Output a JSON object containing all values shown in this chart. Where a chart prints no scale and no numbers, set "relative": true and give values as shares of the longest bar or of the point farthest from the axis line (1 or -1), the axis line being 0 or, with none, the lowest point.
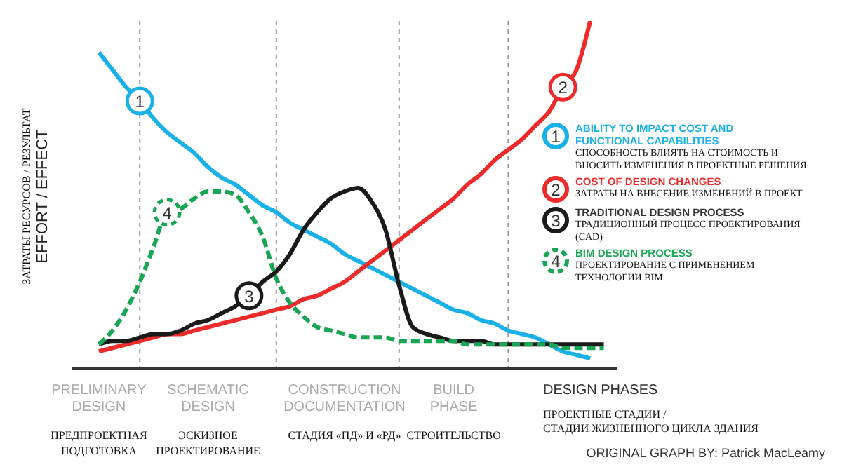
{
  "chart_data": {
    "type": "line",
    "relative": true,
    "ylabel": "ЗАТРАТЫ РЕСУРСОВ / РЕЗУЛЬТАТ\n\nEFFORT / EFFECT",
    "xlabel": "DESIGN PHASES\n\nПРОЕКТНЫЕ СТАДИИ /\nСТАДИИ ЖИЗНЕННОГО ЦИКЛА ЗДАНИЯ",
    "categories": [
      null,
      null,
      "PRELIMINARY\nDESIGN\n\nПРЕДПРОЕКТНАЯ\nПОДГОТОВКА",
      null,
      null,
      null,
      null,
      null,
      null,
      null,
      "SCHEMATIC\nDESIGN\n\nЭСКИЗНОЕ\nПРОЕКТИРОВАНИЕ",
      null,
      null,
      null,
      null,
      null,
      null,
      null,
      null,
      null,
      "CONSTRUCTION\nDOCUMENTATION\n\nСТАДИЯ «ПД» И «РД»",
      null,
      null,
      null,
      null,
      null,
      null,
      null,
      "BUILD\nPHASE\n\nСТРОИТЕЛЬСТВО",
      null,
      null,
      null,
      null,
      null,
      null,
      null,
      null,
      null,
      null,
      null,
      null
    ],
    "grid": "x",
    "legend": "right",
    "series": [
      {
        "name": "ABILITY TO IMPACT COST AND\nFUNCTIONAL CAPABILITIES\n\nСПОСОБНОСТЬ ВЛИЯТЬ НА СТОИМОСТЬ И\nВНОСИТЬ ИЗМЕНЕНИЯ В ПРОЕКТНЫЕ РЕШЕНИЯ",
        "color": "#1ab0e8",
        "line_style": "solid",
        "values": [
          null,
          null,
          0.91,
          0.86,
          0.81,
          0.77,
          0.72,
          0.68,
          0.65,
          0.62,
          0.58,
          0.55,
          0.53,
          0.5,
          0.47,
          0.45,
          0.42,
          0.4,
          0.38,
          0.36,
          0.33,
          0.31,
          0.29,
          0.27,
          0.25,
          0.23,
          0.21,
          0.19,
          0.17,
          0.16,
          0.14,
          0.13,
          0.11,
          0.1,
          0.09,
          0.07,
          0.05,
          0.04,
          0.03,
          null,
          null
        ]
      },
      {
        "name": "COST OF DESIGN CHANGES\n\nЗАТРАТЫ НА ВНЕСЕНИЕ ИЗМЕНЕНИЙ В ПРОЕКТ",
        "color": "#ee2a2a",
        "line_style": "solid",
        "values": [
          null,
          null,
          0.05,
          0.06,
          0.07,
          0.08,
          0.09,
          0.1,
          0.1,
          0.11,
          0.12,
          0.13,
          0.14,
          0.15,
          0.16,
          0.17,
          0.18,
          0.2,
          0.21,
          0.23,
          0.25,
          0.28,
          0.31,
          0.34,
          0.37,
          0.4,
          0.43,
          0.46,
          0.49,
          0.53,
          0.56,
          0.6,
          0.63,
          0.66,
          0.7,
          0.74,
          0.81,
          0.86,
          1,
          null,
          null
        ]
      },
      {
        "name": "TRADITIONAL DESIGN PROCESS\n\nТРАДИЦИОННЫЙ ПРОЦЕСС ПРОЕКТИРОВАНИЯ\n(CAD)",
        "color": "#1a1a1a",
        "line_style": "solid",
        "values": [
          null,
          null,
          0.07,
          0.08,
          0.08,
          0.09,
          0.1,
          0.1,
          0.11,
          0.13,
          0.14,
          0.16,
          0.18,
          0.21,
          0.25,
          0.28,
          0.33,
          0.4,
          0.45,
          0.49,
          0.51,
          0.52,
          0.48,
          0.4,
          0.24,
          0.12,
          0.1,
          0.09,
          0.08,
          0.08,
          0.08,
          0.07,
          0.07,
          0.07,
          0.07,
          0.07,
          0.07,
          0.07,
          0.07,
          0.07,
          null
        ]
      },
      {
        "name": "BIM DESIGN PROCESS\n\nПРОЕКТИРОВАНИЕ С ПРИМЕНЕНИЕМ\nТЕХНОЛОГИИ BIM",
        "color": "#19a654",
        "line_style": "dashed",
        "values": [
          null,
          null,
          0.07,
          0.11,
          0.17,
          0.25,
          0.35,
          0.45,
          0.46,
          0.49,
          0.51,
          0.51,
          0.5,
          0.45,
          0.38,
          0.26,
          0.19,
          0.15,
          0.12,
          0.11,
          0.1,
          0.09,
          0.09,
          0.09,
          0.08,
          0.08,
          0.08,
          0.08,
          0.08,
          0.07,
          0.07,
          0.07,
          0.07,
          0.07,
          0.07,
          0.07,
          0.06,
          0.06,
          0.06,
          0.06,
          null
        ]
      }
    ],
    "annotations": [
      "1",
      "2",
      "3",
      "4",
      "ORIGINAL GRAPH BY: Patrick MacLeamy"
    ]
  }
}
